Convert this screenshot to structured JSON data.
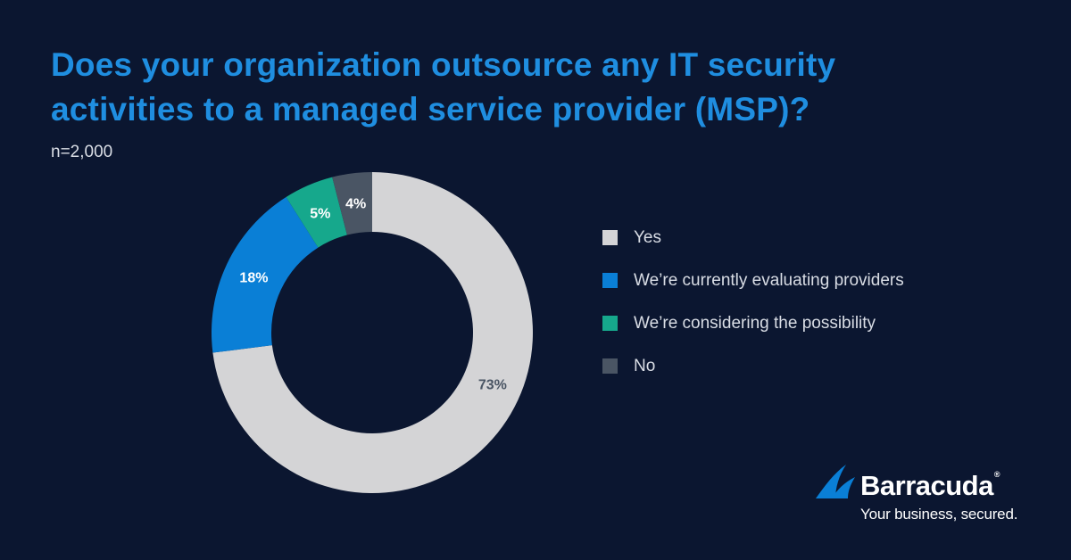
{
  "title_lines": [
    "Does your organization outsource any IT security",
    "activities to a managed service provider (MSP)?"
  ],
  "sample_size": "n=2,000",
  "chart_data": {
    "type": "pie",
    "style": "donut",
    "title": "Does your organization outsource any IT security activities to a managed service provider (MSP)?",
    "slices": [
      {
        "label": "Yes",
        "value": 73,
        "display": "73%",
        "color": "#d4d4d6"
      },
      {
        "label": "We’re currently evaluating providers",
        "value": 18,
        "display": "18%",
        "color": "#0a7fd6"
      },
      {
        "label": "We’re considering the possibility",
        "value": 5,
        "display": "5%",
        "color": "#16a88c"
      },
      {
        "label": "No",
        "value": 4,
        "display": "4%",
        "color": "#4a5564"
      }
    ],
    "start": "12 o'clock, clockwise",
    "legend_position": "right"
  },
  "legend": [
    {
      "label": "Yes",
      "color": "#d4d4d6"
    },
    {
      "label": "We’re currently evaluating providers",
      "color": "#0a7fd6"
    },
    {
      "label": "We’re considering the possibility",
      "color": "#16a88c"
    },
    {
      "label": "No",
      "color": "#4a5564"
    }
  ],
  "brand": {
    "name": "Barracuda",
    "registered": "®",
    "tagline": "Your business, secured.",
    "color": "#0a7fd6"
  }
}
